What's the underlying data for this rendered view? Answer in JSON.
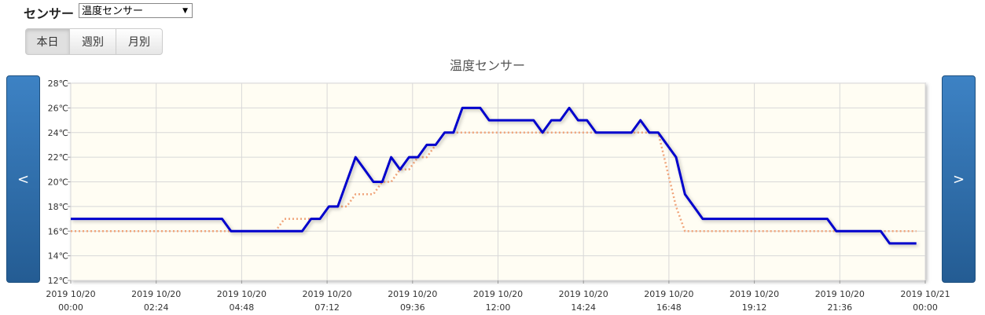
{
  "ui": {
    "sensor_label": "センサー",
    "sensor_select": "温度センサー",
    "buttons": [
      "本日",
      "週別",
      "月別"
    ],
    "prev": "<",
    "next": ">"
  },
  "chart_data": {
    "type": "line",
    "title": "温度センサー",
    "x": [
      "2019-10-20 00:00",
      "2019-10-20 00:15",
      "2019-10-20 00:30",
      "2019-10-20 00:45",
      "2019-10-20 01:00",
      "2019-10-20 01:15",
      "2019-10-20 01:30",
      "2019-10-20 01:45",
      "2019-10-20 02:00",
      "2019-10-20 02:15",
      "2019-10-20 02:30",
      "2019-10-20 02:45",
      "2019-10-20 03:00",
      "2019-10-20 03:15",
      "2019-10-20 03:30",
      "2019-10-20 03:45",
      "2019-10-20 04:00",
      "2019-10-20 04:15",
      "2019-10-20 04:30",
      "2019-10-20 04:45",
      "2019-10-20 05:00",
      "2019-10-20 05:15",
      "2019-10-20 05:30",
      "2019-10-20 05:45",
      "2019-10-20 06:00",
      "2019-10-20 06:15",
      "2019-10-20 06:30",
      "2019-10-20 06:45",
      "2019-10-20 07:00",
      "2019-10-20 07:15",
      "2019-10-20 07:30",
      "2019-10-20 07:45",
      "2019-10-20 08:00",
      "2019-10-20 08:15",
      "2019-10-20 08:30",
      "2019-10-20 08:45",
      "2019-10-20 09:00",
      "2019-10-20 09:15",
      "2019-10-20 09:30",
      "2019-10-20 09:45",
      "2019-10-20 10:00",
      "2019-10-20 10:15",
      "2019-10-20 10:30",
      "2019-10-20 10:45",
      "2019-10-20 11:00",
      "2019-10-20 11:15",
      "2019-10-20 11:30",
      "2019-10-20 11:45",
      "2019-10-20 12:00",
      "2019-10-20 12:15",
      "2019-10-20 12:30",
      "2019-10-20 12:45",
      "2019-10-20 13:00",
      "2019-10-20 13:15",
      "2019-10-20 13:30",
      "2019-10-20 13:45",
      "2019-10-20 14:00",
      "2019-10-20 14:15",
      "2019-10-20 14:30",
      "2019-10-20 14:45",
      "2019-10-20 15:00",
      "2019-10-20 15:15",
      "2019-10-20 15:30",
      "2019-10-20 15:45",
      "2019-10-20 16:00",
      "2019-10-20 16:15",
      "2019-10-20 16:30",
      "2019-10-20 16:45",
      "2019-10-20 17:00",
      "2019-10-20 17:15",
      "2019-10-20 17:30",
      "2019-10-20 17:45",
      "2019-10-20 18:00",
      "2019-10-20 18:15",
      "2019-10-20 18:30",
      "2019-10-20 18:45",
      "2019-10-20 19:00",
      "2019-10-20 19:15",
      "2019-10-20 19:30",
      "2019-10-20 19:45",
      "2019-10-20 20:00",
      "2019-10-20 20:15",
      "2019-10-20 20:30",
      "2019-10-20 20:45",
      "2019-10-20 21:00",
      "2019-10-20 21:15",
      "2019-10-20 21:30",
      "2019-10-20 21:45",
      "2019-10-20 22:00",
      "2019-10-20 22:15",
      "2019-10-20 22:30",
      "2019-10-20 22:45",
      "2019-10-20 23:00",
      "2019-10-20 23:15",
      "2019-10-20 23:30",
      "2019-10-20 23:45"
    ],
    "series": [
      {
        "color": "#f0a47a",
        "style": "dotted",
        "values": [
          16,
          16,
          16,
          16,
          16,
          16,
          16,
          16,
          16,
          16,
          16,
          16,
          16,
          16,
          16,
          16,
          16,
          16,
          16,
          16,
          16,
          16,
          16,
          16,
          17,
          17,
          17,
          17,
          17,
          18,
          18,
          18,
          19,
          19,
          19,
          20,
          20,
          21,
          21,
          22,
          22,
          23,
          24,
          24,
          24,
          24,
          24,
          24,
          24,
          24,
          24,
          24,
          24,
          24,
          24,
          24,
          24,
          24,
          24,
          24,
          24,
          24,
          24,
          24,
          24,
          24,
          24,
          21,
          18,
          16,
          16,
          16,
          16,
          16,
          16,
          16,
          16,
          16,
          16,
          16,
          16,
          16,
          16,
          16,
          16,
          16,
          16,
          16,
          16,
          16,
          16,
          16,
          16,
          16,
          16,
          16
        ]
      },
      {
        "color": "#0000cc",
        "style": "solid",
        "values": [
          17,
          17,
          17,
          17,
          17,
          17,
          17,
          17,
          17,
          17,
          17,
          17,
          17,
          17,
          17,
          17,
          17,
          17,
          16,
          16,
          16,
          16,
          16,
          16,
          16,
          16,
          16,
          17,
          17,
          18,
          18,
          20,
          22,
          21,
          20,
          20,
          22,
          21,
          22,
          22,
          23,
          23,
          24,
          24,
          26,
          26,
          26,
          25,
          25,
          25,
          25,
          25,
          25,
          24,
          25,
          25,
          26,
          25,
          25,
          24,
          24,
          24,
          24,
          24,
          25,
          24,
          24,
          23,
          22,
          19,
          18,
          17,
          17,
          17,
          17,
          17,
          17,
          17,
          17,
          17,
          17,
          17,
          17,
          17,
          17,
          17,
          16,
          16,
          16,
          16,
          16,
          16,
          15,
          15,
          15,
          15
        ]
      }
    ],
    "xlim": [
      "2019-10-20 00:00",
      "2019-10-21 00:00"
    ],
    "xticks": [
      {
        "value": "2019-10-20 00:00",
        "label": "2019 10/20\n00:00"
      },
      {
        "value": "2019-10-20 02:24",
        "label": "2019 10/20\n02:24"
      },
      {
        "value": "2019-10-20 04:48",
        "label": "2019 10/20\n04:48"
      },
      {
        "value": "2019-10-20 07:12",
        "label": "2019 10/20\n07:12"
      },
      {
        "value": "2019-10-20 09:36",
        "label": "2019 10/20\n09:36"
      },
      {
        "value": "2019-10-20 12:00",
        "label": "2019 10/20\n12:00"
      },
      {
        "value": "2019-10-20 14:24",
        "label": "2019 10/20\n14:24"
      },
      {
        "value": "2019-10-20 16:48",
        "label": "2019 10/20\n16:48"
      },
      {
        "value": "2019-10-20 19:12",
        "label": "2019 10/20\n19:12"
      },
      {
        "value": "2019-10-20 21:36",
        "label": "2019 10/20\n21:36"
      },
      {
        "value": "2019-10-21 00:00",
        "label": "2019 10/21\n00:00"
      }
    ],
    "ylim": [
      12,
      28
    ],
    "yticks": [
      {
        "value": 12,
        "label": "12℃"
      },
      {
        "value": 14,
        "label": "14℃"
      },
      {
        "value": 16,
        "label": "16℃"
      },
      {
        "value": 18,
        "label": "18℃"
      },
      {
        "value": 20,
        "label": "20℃"
      },
      {
        "value": 22,
        "label": "22℃"
      },
      {
        "value": 24,
        "label": "24℃"
      },
      {
        "value": 26,
        "label": "26℃"
      },
      {
        "value": 28,
        "label": "28℃"
      }
    ],
    "grid": true
  }
}
